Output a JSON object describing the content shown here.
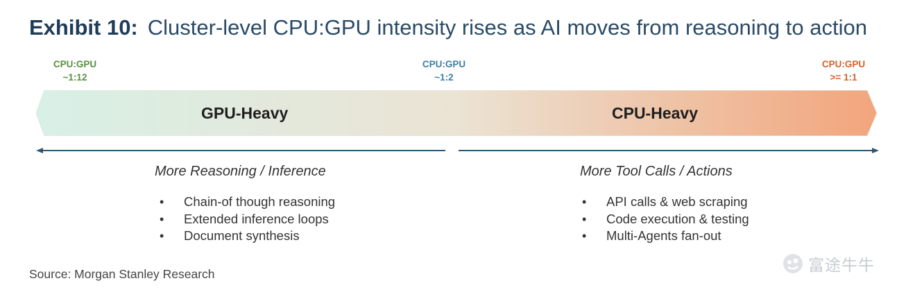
{
  "title": {
    "exhibit": "Exhibit 10:",
    "text": "Cluster-level CPU:GPU intensity rises as AI moves from reasoning to action"
  },
  "ratios": [
    {
      "line1": "CPU:GPU",
      "line2": "~1:12",
      "color": "#5a8f3e"
    },
    {
      "line1": "CPU:GPU",
      "line2": "~1:2",
      "color": "#3d7fa8"
    },
    {
      "line1": "CPU:GPU",
      "line2": ">= 1:1",
      "color": "#d4622a"
    }
  ],
  "banner": {
    "left_label": "GPU-Heavy",
    "right_label": "CPU-Heavy",
    "gradient": [
      "#d8f0e6",
      "#ebe3d4",
      "#f2a57c"
    ]
  },
  "left": {
    "heading": "More Reasoning / Inference",
    "bullets": [
      "Chain-of though reasoning",
      "Extended inference loops",
      "Document synthesis"
    ]
  },
  "right": {
    "heading": "More Tool Calls / Actions",
    "bullets": [
      "API calls & web scraping",
      "Code execution & testing",
      "Multi-Agents fan-out"
    ]
  },
  "arrow_color": "#2d5872",
  "source": "Source: Morgan Stanley Research",
  "watermark": "富途牛牛"
}
